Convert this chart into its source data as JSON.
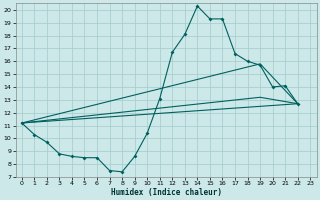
{
  "xlabel": "Humidex (Indice chaleur)",
  "bg_color": "#cce8e8",
  "grid_color": "#aacece",
  "line_color": "#006060",
  "xlim": [
    -0.5,
    23.5
  ],
  "ylim": [
    7,
    20.5
  ],
  "xticks": [
    0,
    1,
    2,
    3,
    4,
    5,
    6,
    7,
    8,
    9,
    10,
    11,
    12,
    13,
    14,
    15,
    16,
    17,
    18,
    19,
    20,
    21,
    22,
    23
  ],
  "yticks": [
    7,
    8,
    9,
    10,
    11,
    12,
    13,
    14,
    15,
    16,
    17,
    18,
    19,
    20
  ],
  "line1_x": [
    0,
    1,
    2,
    3,
    4,
    5,
    6,
    7,
    8,
    9,
    10,
    11,
    12,
    13,
    14,
    15,
    16,
    17,
    18,
    19,
    20,
    21,
    22
  ],
  "line1_y": [
    11.2,
    10.3,
    9.7,
    8.8,
    8.6,
    8.5,
    8.5,
    7.5,
    7.4,
    8.6,
    10.4,
    13.1,
    16.7,
    18.1,
    20.3,
    19.3,
    19.3,
    16.6,
    16.0,
    15.7,
    14.0,
    14.1,
    12.7
  ],
  "line2_x": [
    0,
    22
  ],
  "line2_y": [
    11.2,
    12.7
  ],
  "line3_x": [
    0,
    19,
    22
  ],
  "line3_y": [
    11.2,
    15.8,
    12.7
  ],
  "line4_x": [
    0,
    19,
    22
  ],
  "line4_y": [
    11.2,
    13.2,
    12.7
  ]
}
